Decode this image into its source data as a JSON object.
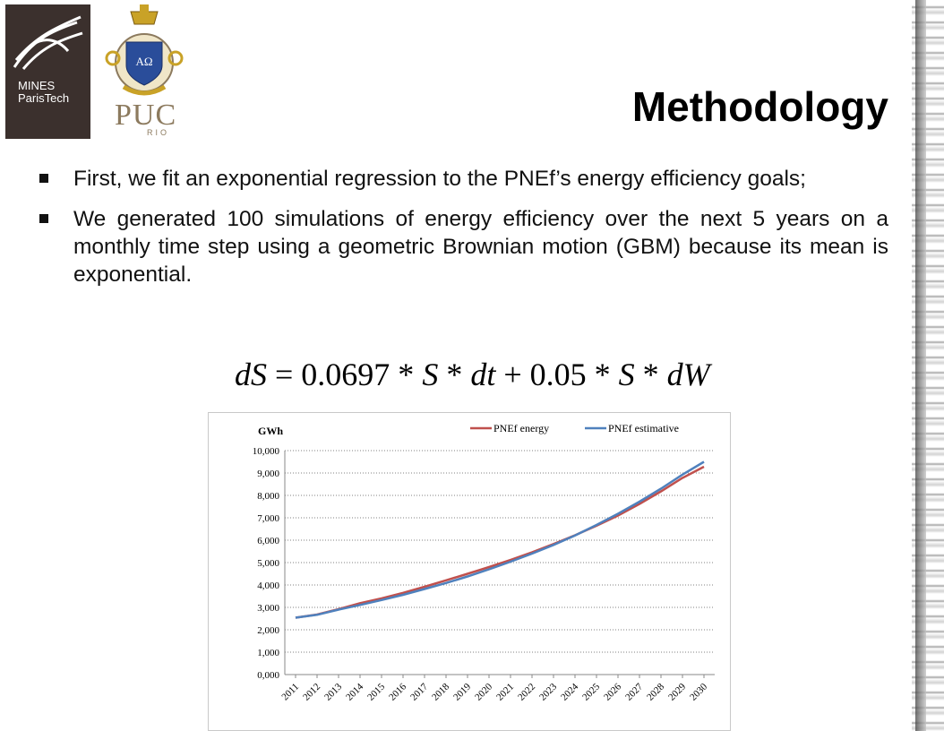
{
  "logos": {
    "mines_line1": "MINES",
    "mines_line2": "ParisTech",
    "puc": "PUC",
    "rio": "RIO",
    "seal_text": "AΩ"
  },
  "title": "Methodology",
  "bullets": [
    "First, we fit an exponential regression to the PNEf’s energy efficiency goals;",
    "We generated 100 simulations of energy efficiency over the next 5 years on a monthly time step using a geometric Brownian motion (GBM) because its mean is exponential."
  ],
  "equation": "dS = 0.0697 * S * dt + 0.05 * S * dW",
  "colors": {
    "series1": "#c0504d",
    "series2": "#4f81bd",
    "grid": "#808080"
  },
  "chart_data": {
    "type": "line",
    "ylabel": "GWh",
    "ylim": [
      0,
      10000
    ],
    "yticks": [
      "0,000",
      "1,000",
      "2,000",
      "3,000",
      "4,000",
      "5,000",
      "6,000",
      "7,000",
      "8,000",
      "9,000",
      "10,000"
    ],
    "categories": [
      "2011",
      "2012",
      "2013",
      "2014",
      "2015",
      "2016",
      "2017",
      "2018",
      "2019",
      "2020",
      "2021",
      "2022",
      "2023",
      "2024",
      "2025",
      "2026",
      "2027",
      "2028",
      "2029",
      "2030"
    ],
    "series": [
      {
        "name": "PNEf energy",
        "values": [
          2540,
          2680,
          2920,
          3190,
          3400,
          3650,
          3920,
          4210,
          4500,
          4800,
          5120,
          5460,
          5830,
          6220,
          6650,
          7100,
          7620,
          8180,
          8780,
          9280
        ]
      },
      {
        "name": "PNEf estimative",
        "values": [
          2540,
          2670,
          2900,
          3110,
          3330,
          3560,
          3820,
          4090,
          4380,
          4700,
          5040,
          5400,
          5790,
          6210,
          6680,
          7180,
          7720,
          8300,
          8930,
          9500
        ]
      }
    ],
    "legend_position": "top",
    "grid": true
  }
}
